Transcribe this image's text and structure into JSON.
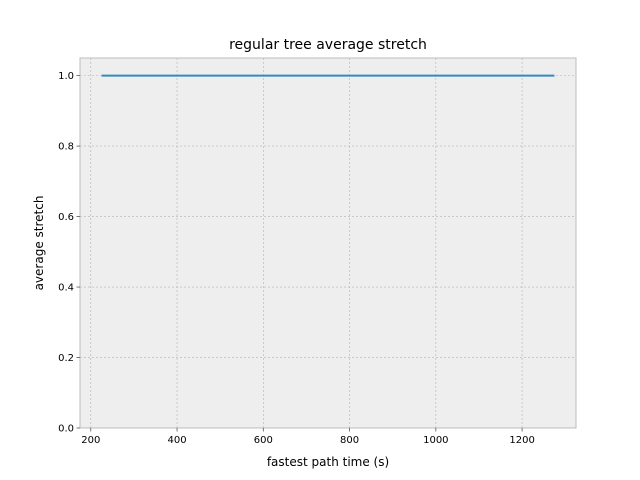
{
  "chart_data": {
    "type": "line",
    "title": "regular tree average stretch",
    "xlabel": "fastest path time (s)",
    "ylabel": "average stretch",
    "xlim": [
      175,
      1325
    ],
    "ylim": [
      0.0,
      1.05
    ],
    "xticks": [
      200,
      400,
      600,
      800,
      1000,
      1200
    ],
    "yticks": [
      0.0,
      0.2,
      0.4,
      0.6,
      0.8,
      1.0
    ],
    "xtick_labels": [
      "200",
      "400",
      "600",
      "800",
      "1000",
      "1200"
    ],
    "ytick_labels": [
      "0.0",
      "0.2",
      "0.4",
      "0.6",
      "0.8",
      "1.0"
    ],
    "grid": true,
    "series": [
      {
        "color": "#348ABD",
        "x": [
          225,
          1275
        ],
        "y": [
          1.0,
          1.0
        ]
      }
    ]
  },
  "colors": {
    "plot_background": "#EEEEEE",
    "grid": "#B2B2B2",
    "frame": "#BCBCBC"
  }
}
